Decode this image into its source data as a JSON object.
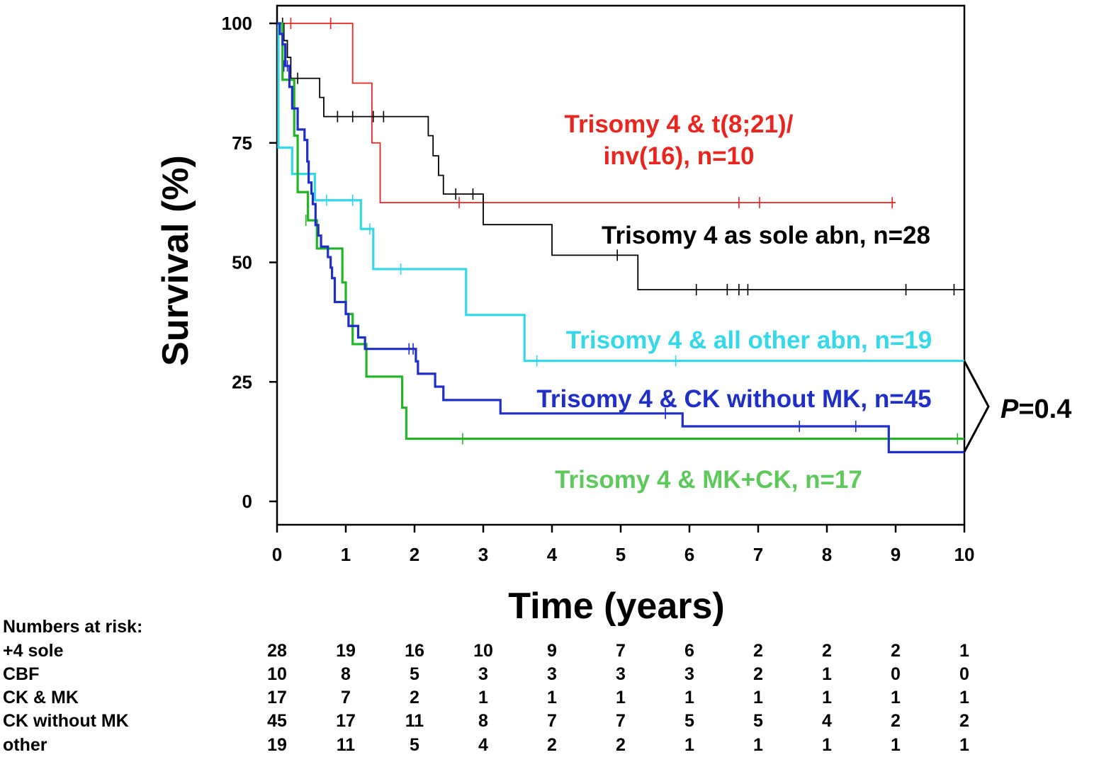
{
  "chart_data": {
    "type": "line",
    "subtype": "kaplan-meier",
    "xlabel": "Time (years)",
    "ylabel": "Survival (%)",
    "xlim": [
      0,
      10
    ],
    "ylim": [
      0,
      100
    ],
    "x_ticks": [
      "0",
      "1",
      "2",
      "3",
      "4",
      "5",
      "6",
      "7",
      "8",
      "9",
      "10"
    ],
    "y_ticks": [
      "0",
      "25",
      "50",
      "75",
      "100"
    ],
    "grid": false,
    "series": [
      {
        "name": "Trisomy 4 as sole abn, n=28",
        "color": "#000000",
        "steps": [
          [
            0,
            100
          ],
          [
            0.1,
            96.4
          ],
          [
            0.15,
            92.9
          ],
          [
            0.2,
            88.5
          ],
          [
            0.62,
            84.5
          ],
          [
            0.68,
            80.5
          ],
          [
            2.2,
            76.5
          ],
          [
            2.27,
            72.3
          ],
          [
            2.35,
            68.2
          ],
          [
            2.42,
            64.3
          ],
          [
            3.0,
            57.9
          ],
          [
            4.0,
            51.5
          ],
          [
            5.25,
            44.3
          ],
          [
            10,
            44.3
          ]
        ],
        "censors": [
          [
            0.08,
            100
          ],
          [
            0.3,
            88.5
          ],
          [
            0.88,
            80.5
          ],
          [
            1.1,
            80.5
          ],
          [
            1.4,
            80.5
          ],
          [
            1.55,
            80.5
          ],
          [
            2.6,
            64.3
          ],
          [
            2.85,
            64.3
          ],
          [
            4.95,
            51.5
          ],
          [
            6.1,
            44.3
          ],
          [
            6.55,
            44.3
          ],
          [
            6.72,
            44.3
          ],
          [
            6.85,
            44.3
          ],
          [
            9.15,
            44.3
          ],
          [
            9.85,
            44.3
          ]
        ],
        "end_x": 10
      },
      {
        "name": "Trisomy 4 & t(8;21)/ inv(16), n=10",
        "color": "#e8251f",
        "steps": [
          [
            0,
            100
          ],
          [
            1.1,
            87.5
          ],
          [
            1.38,
            75
          ],
          [
            1.5,
            62.5
          ],
          [
            9,
            62.5
          ]
        ],
        "censors": [
          [
            0.2,
            100
          ],
          [
            0.78,
            100
          ],
          [
            2.65,
            62.5
          ],
          [
            3.0,
            62.5
          ],
          [
            6.72,
            62.5
          ],
          [
            7.02,
            62.5
          ],
          [
            8.95,
            62.5
          ]
        ],
        "end_x": 9
      },
      {
        "name": "Trisomy 4 & all other abn, n=19",
        "color": "#35d8e8",
        "steps": [
          [
            0,
            100
          ],
          [
            0.02,
            74
          ],
          [
            0.22,
            68.5
          ],
          [
            0.55,
            63
          ],
          [
            1.22,
            57
          ],
          [
            1.4,
            48.6
          ],
          [
            2.75,
            39
          ],
          [
            3.6,
            29.4
          ],
          [
            10,
            29.4
          ]
        ],
        "censors": [
          [
            0.72,
            63
          ],
          [
            1.1,
            63
          ],
          [
            1.35,
            57
          ],
          [
            1.8,
            48.6
          ],
          [
            3.78,
            29.4
          ],
          [
            5.8,
            29.4
          ]
        ],
        "end_x": 10
      },
      {
        "name": "Trisomy 4 & CK without MK, n=45",
        "color": "#1f2fc7",
        "steps": [
          [
            0,
            100
          ],
          [
            0.04,
            97.8
          ],
          [
            0.08,
            95.6
          ],
          [
            0.12,
            91.1
          ],
          [
            0.18,
            86.7
          ],
          [
            0.22,
            82.2
          ],
          [
            0.3,
            77.8
          ],
          [
            0.4,
            75.6
          ],
          [
            0.44,
            71.1
          ],
          [
            0.46,
            66.7
          ],
          [
            0.5,
            64.4
          ],
          [
            0.52,
            62.2
          ],
          [
            0.56,
            57.8
          ],
          [
            0.6,
            55.6
          ],
          [
            0.64,
            53.3
          ],
          [
            0.74,
            51.1
          ],
          [
            0.78,
            48.9
          ],
          [
            0.8,
            46.7
          ],
          [
            0.84,
            41.7
          ],
          [
            1.0,
            39.2
          ],
          [
            1.04,
            36.7
          ],
          [
            1.18,
            34.3
          ],
          [
            1.28,
            31.9
          ],
          [
            2.02,
            29.3
          ],
          [
            2.05,
            26.7
          ],
          [
            2.3,
            24.0
          ],
          [
            2.42,
            21.2
          ],
          [
            3.25,
            18.4
          ],
          [
            5.9,
            15.7
          ],
          [
            8.9,
            10.3
          ],
          [
            10,
            10.3
          ]
        ],
        "censors": [
          [
            0.1,
            91.1
          ],
          [
            0.15,
            91.1
          ],
          [
            1.92,
            31.9
          ],
          [
            1.98,
            31.9
          ],
          [
            5.65,
            18.4
          ],
          [
            7.6,
            15.7
          ],
          [
            8.42,
            15.7
          ]
        ],
        "end_x": 10
      },
      {
        "name": "Trisomy 4 & MK+CK, n=17",
        "color": "#22b526",
        "steps": [
          [
            0,
            100
          ],
          [
            0.08,
            88.2
          ],
          [
            0.25,
            76.5
          ],
          [
            0.3,
            70.6
          ],
          [
            0.3,
            64.7
          ],
          [
            0.45,
            58.8
          ],
          [
            0.58,
            52.9
          ],
          [
            0.68,
            52.9
          ],
          [
            0.95,
            45.8
          ],
          [
            1.0,
            39.2
          ],
          [
            1.1,
            32.9
          ],
          [
            1.3,
            26.1
          ],
          [
            1.82,
            19.6
          ],
          [
            1.88,
            13.1
          ],
          [
            10,
            13.1
          ]
        ],
        "censors": [
          [
            0.42,
            58.8
          ],
          [
            2.7,
            13.1
          ],
          [
            9.9,
            13.1
          ]
        ],
        "end_x": 10
      }
    ],
    "annotations": {
      "p_value_prefix": "P",
      "p_value_suffix": "=0.4"
    }
  },
  "labels": {
    "red_line1": "Trisomy 4 & t(8;21)/",
    "red_line2": "inv(16), n=10",
    "black": "Trisomy 4 as sole abn, n=28",
    "cyan": "Trisomy 4 & all other abn, n=19",
    "blue": "Trisomy 4 & CK without MK, n=45",
    "green": "Trisomy 4 & MK+CK, n=17"
  },
  "risk_table": {
    "title": "Numbers at risk:",
    "rows": [
      {
        "label": "+4 sole",
        "values": [
          "28",
          "19",
          "16",
          "10",
          "9",
          "7",
          "6",
          "2",
          "2",
          "2",
          "1"
        ]
      },
      {
        "label": "CBF",
        "values": [
          "10",
          "8",
          "5",
          "3",
          "3",
          "3",
          "3",
          "2",
          "1",
          "0",
          "0"
        ]
      },
      {
        "label": "CK & MK",
        "values": [
          "17",
          "7",
          "2",
          "1",
          "1",
          "1",
          "1",
          "1",
          "1",
          "1",
          "1"
        ]
      },
      {
        "label": "CK without MK",
        "values": [
          "45",
          "17",
          "11",
          "8",
          "7",
          "7",
          "5",
          "5",
          "4",
          "2",
          "2"
        ]
      },
      {
        "label": "other",
        "values": [
          "19",
          "11",
          "5",
          "4",
          "2",
          "2",
          "1",
          "1",
          "1",
          "1",
          "1"
        ]
      }
    ]
  }
}
